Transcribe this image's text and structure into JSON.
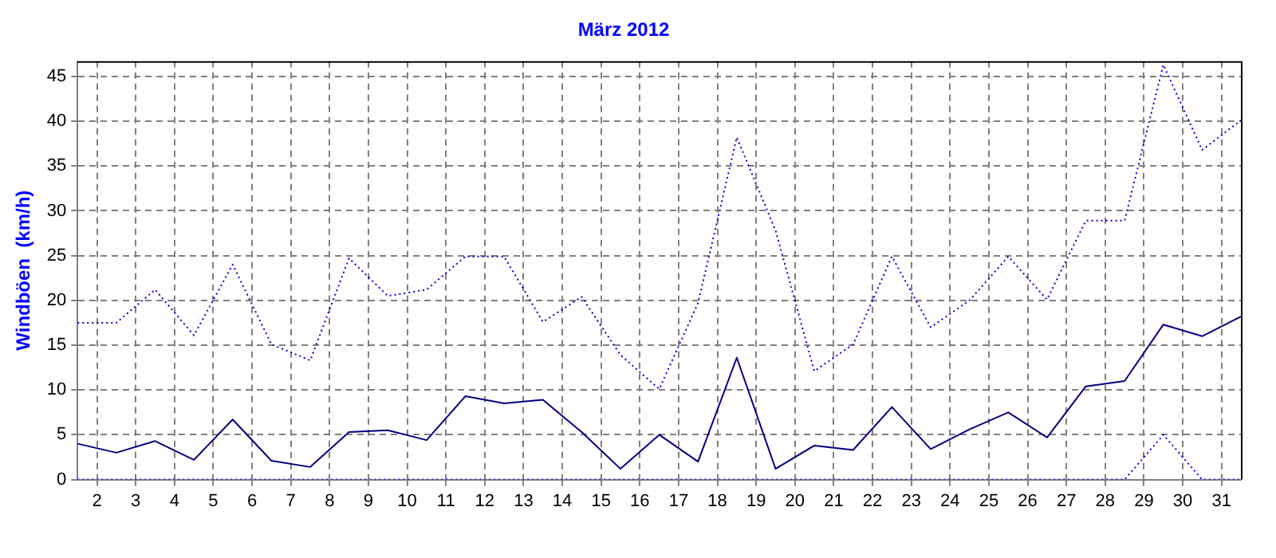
{
  "chart_data": {
    "type": "line",
    "title": "März 2012",
    "ylabel": "Windböen  (km/h)",
    "x": [
      1.5,
      2.5,
      3.5,
      4.5,
      5.5,
      6.5,
      7.5,
      8.5,
      9.5,
      10.5,
      11.5,
      12.5,
      13.5,
      14.5,
      15.5,
      16.5,
      17.5,
      18.5,
      19.5,
      20.5,
      21.5,
      22.5,
      23.5,
      24.5,
      25.5,
      26.5,
      27.5,
      28.5,
      29.5,
      30.5,
      31.5
    ],
    "series": [
      {
        "color": "#0000cc",
        "line_style": "dotted",
        "values": [
          17.5,
          17.5,
          21.2,
          16.1,
          24.0,
          15.1,
          13.3,
          24.7,
          20.5,
          21.2,
          24.9,
          24.9,
          17.6,
          20.4,
          13.9,
          10.1,
          19.7,
          38.2,
          27.8,
          12.1,
          15.1,
          24.9,
          17.0,
          20.0,
          24.9,
          20.1,
          28.9,
          28.9,
          46.3,
          36.8,
          40.1
        ]
      },
      {
        "color": "#000080",
        "line_style": "solid",
        "values": [
          4.0,
          3.0,
          4.3,
          2.2,
          6.7,
          2.1,
          1.4,
          5.3,
          5.5,
          4.4,
          9.3,
          8.5,
          8.9,
          5.3,
          1.2,
          5.0,
          2.0,
          13.6,
          1.2,
          3.8,
          3.3,
          8.1,
          3.4,
          5.6,
          7.5,
          4.7,
          10.4,
          11.0,
          17.3,
          16.0,
          18.2
        ]
      },
      {
        "color": "#0000ff",
        "line_style": "dotted",
        "values": [
          0,
          0,
          0,
          0,
          0,
          0,
          0,
          0,
          0,
          0,
          0,
          0,
          0,
          0,
          0,
          0,
          0,
          0,
          0,
          0,
          0,
          0,
          0,
          0,
          0,
          0,
          0,
          0,
          5,
          0,
          0
        ]
      }
    ],
    "xlim": [
      1.5,
      31.5
    ],
    "xticks": [
      2,
      3,
      4,
      5,
      6,
      7,
      8,
      9,
      10,
      11,
      12,
      13,
      14,
      15,
      16,
      17,
      18,
      19,
      20,
      21,
      22,
      23,
      24,
      25,
      26,
      27,
      28,
      29,
      30,
      31
    ],
    "ylim": [
      0,
      46.7
    ],
    "yticks": [
      0,
      5,
      10,
      15,
      20,
      25,
      30,
      35,
      40,
      45
    ],
    "grid": true,
    "legend": false,
    "marker": "none"
  }
}
